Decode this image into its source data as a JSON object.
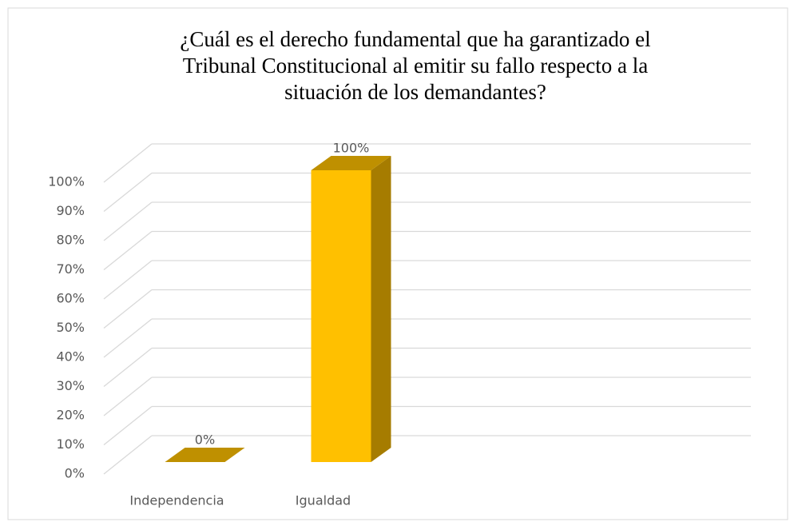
{
  "chart_data": {
    "type": "bar3d",
    "title": [
      "¿Cuál es el derecho fundamental que ha garantizado el",
      "Tribunal Constitucional al emitir su fallo respecto a la",
      "situación de los demandantes?"
    ],
    "categories": [
      "Independencia",
      "Igualdad"
    ],
    "values": [
      0,
      100
    ],
    "value_labels": [
      "0%",
      "100%"
    ],
    "color": "#ffc000",
    "ylim": [
      0,
      100
    ],
    "yticks": [
      {
        "value": 0,
        "label": "0%"
      },
      {
        "value": 10,
        "label": "10%"
      },
      {
        "value": 20,
        "label": "20%"
      },
      {
        "value": 30,
        "label": "30%"
      },
      {
        "value": 40,
        "label": "40%"
      },
      {
        "value": 50,
        "label": "50%"
      },
      {
        "value": 60,
        "label": "60%"
      },
      {
        "value": 70,
        "label": "70%"
      },
      {
        "value": 80,
        "label": "80%"
      },
      {
        "value": 90,
        "label": "90%"
      },
      {
        "value": 100,
        "label": "100%"
      }
    ],
    "grid": true
  }
}
